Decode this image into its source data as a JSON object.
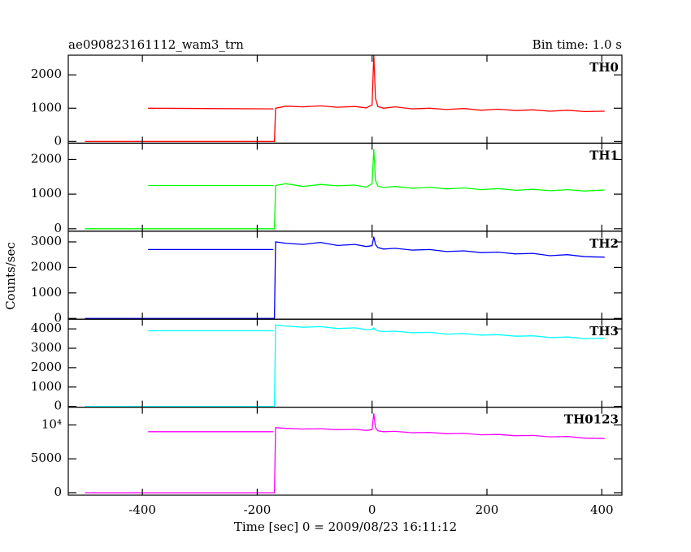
{
  "title": "ae090823161112_wam3_trn",
  "annotation": "Bin time: 1.0 s",
  "y_label": "Counts/sec",
  "x_label": "Time [sec] 0 = 2009/08/23 16:11:12",
  "chart_data": [
    {
      "type": "line",
      "label": "TH0",
      "color": "#ff0000",
      "xlim": [
        -529,
        435
      ],
      "xticks": [
        -400,
        -200,
        0,
        200,
        400
      ],
      "ylim": [
        -50,
        2590
      ],
      "yticks": [
        0,
        1000,
        2000
      ],
      "x": [
        -390,
        -172,
        -171,
        -500,
        -170,
        -168,
        -150,
        -120,
        -90,
        -60,
        -30,
        -10,
        0,
        3,
        6,
        10,
        20,
        40,
        70,
        100,
        130,
        160,
        190,
        220,
        250,
        280,
        310,
        340,
        370,
        405
      ],
      "values": [
        1000,
        980,
        null,
        0,
        0,
        1000,
        1060,
        1040,
        1070,
        1030,
        1050,
        1010,
        1100,
        2600,
        1300,
        1050,
        1000,
        1040,
        980,
        1000,
        960,
        990,
        940,
        970,
        930,
        950,
        910,
        940,
        900,
        910
      ]
    },
    {
      "type": "line",
      "label": "TH1",
      "color": "#00ff00",
      "xlim": [
        -529,
        435
      ],
      "xticks": [
        -400,
        -200,
        0,
        200,
        400
      ],
      "ylim": [
        -70,
        2470
      ],
      "yticks": [
        0,
        1000,
        2000
      ],
      "x": [
        -390,
        -172,
        -171,
        -500,
        -170,
        -168,
        -150,
        -120,
        -90,
        -60,
        -30,
        -10,
        0,
        3,
        6,
        10,
        20,
        40,
        70,
        100,
        130,
        160,
        190,
        220,
        250,
        280,
        310,
        340,
        370,
        405
      ],
      "values": [
        1250,
        1250,
        null,
        0,
        0,
        1250,
        1300,
        1220,
        1280,
        1240,
        1260,
        1200,
        1300,
        2300,
        1400,
        1230,
        1190,
        1220,
        1170,
        1200,
        1150,
        1180,
        1130,
        1160,
        1110,
        1140,
        1100,
        1130,
        1090,
        1120
      ]
    },
    {
      "type": "line",
      "label": "TH2",
      "color": "#0000ff",
      "xlim": [
        -529,
        435
      ],
      "xticks": [
        -400,
        -200,
        0,
        200,
        400
      ],
      "ylim": [
        -30,
        3420
      ],
      "yticks": [
        0,
        1000,
        2000,
        3000
      ],
      "x": [
        -390,
        -172,
        -171,
        -500,
        -170,
        -168,
        -150,
        -120,
        -90,
        -60,
        -30,
        -10,
        0,
        3,
        6,
        10,
        20,
        40,
        70,
        100,
        130,
        160,
        190,
        220,
        250,
        280,
        310,
        340,
        370,
        405
      ],
      "values": [
        2700,
        2700,
        null,
        0,
        0,
        3000,
        2950,
        2900,
        2980,
        2860,
        2900,
        2820,
        2850,
        3200,
        2900,
        2780,
        2720,
        2750,
        2680,
        2700,
        2620,
        2650,
        2580,
        2600,
        2530,
        2550,
        2460,
        2500,
        2420,
        2400
      ]
    },
    {
      "type": "line",
      "label": "TH3",
      "color": "#00ffff",
      "xlim": [
        -529,
        435
      ],
      "xticks": [
        -400,
        -200,
        0,
        200,
        400
      ],
      "ylim": [
        -40,
        4500
      ],
      "yticks": [
        0,
        1000,
        2000,
        3000,
        4000
      ],
      "x": [
        -390,
        -172,
        -171,
        -500,
        -170,
        -168,
        -150,
        -120,
        -90,
        -60,
        -30,
        -10,
        0,
        3,
        6,
        10,
        20,
        40,
        70,
        100,
        130,
        160,
        190,
        220,
        250,
        280,
        310,
        340,
        370,
        405
      ],
      "values": [
        3900,
        3900,
        null,
        0,
        0,
        4200,
        4150,
        4080,
        4120,
        4020,
        4050,
        3960,
        3980,
        4050,
        3950,
        3900,
        3860,
        3880,
        3800,
        3820,
        3730,
        3760,
        3680,
        3700,
        3620,
        3640,
        3550,
        3580,
        3500,
        3520
      ]
    },
    {
      "type": "line",
      "label": "TH0123",
      "color": "#ff00ff",
      "xlim": [
        -529,
        435
      ],
      "xticks": [
        -400,
        -200,
        0,
        200,
        400
      ],
      "ylim": [
        -360,
        12620
      ],
      "yticks": [
        0,
        5000,
        {
          "value": 10000,
          "label": "10⁴"
        }
      ],
      "x": [
        -390,
        -172,
        -171,
        -500,
        -170,
        -168,
        -150,
        -120,
        -90,
        -60,
        -30,
        -10,
        0,
        3,
        6,
        10,
        20,
        40,
        70,
        100,
        130,
        160,
        190,
        220,
        250,
        280,
        310,
        340,
        370,
        405
      ],
      "values": [
        9000,
        9000,
        null,
        0,
        0,
        9600,
        9500,
        9400,
        9450,
        9300,
        9350,
        9200,
        9300,
        11700,
        9600,
        9150,
        9000,
        9050,
        8850,
        8900,
        8700,
        8750,
        8550,
        8600,
        8400,
        8450,
        8250,
        8300,
        8050,
        8000
      ]
    }
  ]
}
